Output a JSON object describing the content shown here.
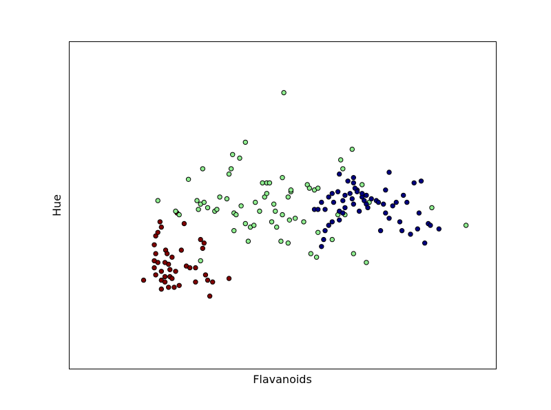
{
  "chart_data": {
    "type": "scatter",
    "title": "",
    "xlabel": "Flavanoids",
    "ylabel": "Hue",
    "xlim": [
      -0.5,
      5.5
    ],
    "ylim": [
      0.15,
      2.0
    ],
    "grid": false,
    "legend": "none",
    "xticks_visible": false,
    "yticks_visible": false,
    "series": [
      {
        "color": "#800000",
        "points": [
          [
            0.55,
            0.65
          ],
          [
            0.7,
            0.72
          ],
          [
            0.7,
            0.85
          ],
          [
            0.72,
            0.8
          ],
          [
            0.72,
            0.68
          ],
          [
            0.75,
            0.75
          ],
          [
            0.8,
            0.7
          ],
          [
            0.7,
            0.76
          ],
          [
            0.72,
            0.9
          ],
          [
            0.75,
            0.92
          ],
          [
            0.78,
            0.98
          ],
          [
            0.8,
            0.95
          ],
          [
            0.8,
            0.65
          ],
          [
            0.8,
            0.6
          ],
          [
            0.85,
            0.64
          ],
          [
            0.85,
            0.67
          ],
          [
            0.86,
            0.82
          ],
          [
            0.88,
            0.8
          ],
          [
            0.9,
            0.61
          ],
          [
            0.9,
            0.74
          ],
          [
            0.92,
            0.71
          ],
          [
            0.92,
            0.67
          ],
          [
            0.95,
            0.66
          ],
          [
            0.95,
            0.78
          ],
          [
            0.98,
            0.61
          ],
          [
            1.0,
            0.7
          ],
          [
            1.02,
            1.03
          ],
          [
            1.05,
            0.62
          ],
          [
            1.08,
            0.82
          ],
          [
            1.12,
            0.97
          ],
          [
            1.15,
            0.73
          ],
          [
            1.2,
            0.72
          ],
          [
            1.28,
            0.64
          ],
          [
            1.28,
            0.72
          ],
          [
            1.35,
            0.88
          ],
          [
            1.4,
            0.86
          ],
          [
            1.38,
            0.83
          ],
          [
            1.42,
            0.68
          ],
          [
            1.45,
            0.65
          ],
          [
            1.48,
            0.56
          ],
          [
            1.52,
            0.64
          ],
          [
            1.75,
            0.66
          ],
          [
            0.85,
            0.75
          ]
        ]
      },
      {
        "color": "#90ee90",
        "points": [
          [
            0.75,
            1.1
          ],
          [
            1.0,
            1.04
          ],
          [
            1.05,
            1.02
          ],
          [
            1.18,
            1.22
          ],
          [
            1.3,
            1.1
          ],
          [
            1.32,
            1.05
          ],
          [
            1.35,
            1.08
          ],
          [
            1.35,
            0.76
          ],
          [
            1.38,
            1.28
          ],
          [
            1.4,
            1.09
          ],
          [
            1.45,
            1.06
          ],
          [
            1.55,
            1.04
          ],
          [
            1.58,
            1.05
          ],
          [
            1.62,
            1.12
          ],
          [
            1.72,
            1.11
          ],
          [
            1.75,
            1.25
          ],
          [
            1.78,
            1.28
          ],
          [
            1.8,
            1.36
          ],
          [
            1.82,
            0.93
          ],
          [
            1.82,
            1.03
          ],
          [
            1.85,
            1.02
          ],
          [
            1.9,
            1.34
          ],
          [
            1.92,
            1.07
          ],
          [
            1.98,
            1.43
          ],
          [
            1.98,
            0.97
          ],
          [
            2.02,
            0.87
          ],
          [
            2.05,
            0.95
          ],
          [
            2.1,
            0.96
          ],
          [
            2.12,
            1.09
          ],
          [
            2.18,
            1.04
          ],
          [
            2.22,
            1.2
          ],
          [
            2.25,
            1.12
          ],
          [
            2.28,
            1.14
          ],
          [
            2.28,
            1.2
          ],
          [
            2.32,
            1.2
          ],
          [
            2.35,
            0.98
          ],
          [
            2.38,
            1.08
          ],
          [
            2.4,
            1.04
          ],
          [
            2.42,
            0.95
          ],
          [
            2.48,
            0.87
          ],
          [
            2.5,
            1.02
          ],
          [
            2.5,
            1.23
          ],
          [
            2.52,
            1.71
          ],
          [
            2.58,
            0.86
          ],
          [
            2.58,
            1.12
          ],
          [
            2.6,
            0.99
          ],
          [
            2.62,
            1.15
          ],
          [
            2.62,
            1.16
          ],
          [
            2.68,
            1.0
          ],
          [
            2.8,
            0.98
          ],
          [
            2.85,
            1.19
          ],
          [
            2.88,
            1.17
          ],
          [
            2.9,
            0.8
          ],
          [
            2.95,
            1.16
          ],
          [
            2.98,
            0.78
          ],
          [
            3.0,
            0.92
          ],
          [
            3.0,
            1.17
          ],
          [
            3.2,
            0.88
          ],
          [
            3.28,
            1.02
          ],
          [
            3.32,
            1.33
          ],
          [
            3.35,
            1.28
          ],
          [
            3.38,
            1.02
          ],
          [
            3.48,
            1.39
          ],
          [
            3.5,
            0.8
          ],
          [
            3.62,
            1.19
          ],
          [
            3.68,
            0.75
          ],
          [
            3.72,
            1.09
          ],
          [
            4.6,
            1.06
          ],
          [
            5.08,
            0.96
          ]
        ]
      },
      {
        "color": "#000080",
        "points": [
          [
            2.95,
            1.05
          ],
          [
            3.0,
            1.05
          ],
          [
            3.05,
            1.09
          ],
          [
            3.1,
            1.05
          ],
          [
            3.15,
            1.12
          ],
          [
            3.2,
            1.14
          ],
          [
            3.22,
            1.09
          ],
          [
            3.28,
            1.15
          ],
          [
            3.3,
            1.04
          ],
          [
            3.35,
            1.1
          ],
          [
            3.38,
            1.06
          ],
          [
            3.38,
            1.13
          ],
          [
            3.42,
            1.21
          ],
          [
            3.45,
            1.14
          ],
          [
            3.48,
            1.11
          ],
          [
            3.5,
            1.08
          ],
          [
            3.55,
            1.16
          ],
          [
            3.58,
            1.04
          ],
          [
            3.5,
            1.2
          ],
          [
            3.5,
            1.23
          ],
          [
            3.62,
            1.12
          ],
          [
            3.65,
            1.1
          ],
          [
            3.68,
            1.13
          ],
          [
            3.68,
            1.08
          ],
          [
            3.7,
            1.06
          ],
          [
            3.75,
            1.11
          ],
          [
            3.82,
            1.1
          ],
          [
            3.85,
            1.09
          ],
          [
            3.88,
            0.93
          ],
          [
            3.92,
            1.08
          ],
          [
            3.95,
            1.03
          ],
          [
            3.95,
            1.16
          ],
          [
            4.0,
            1.0
          ],
          [
            4.0,
            1.26
          ],
          [
            4.05,
            1.07
          ],
          [
            4.1,
            1.09
          ],
          [
            4.15,
            0.98
          ],
          [
            4.18,
            0.93
          ],
          [
            4.2,
            1.13
          ],
          [
            4.25,
            1.09
          ],
          [
            4.3,
            0.91
          ],
          [
            4.35,
            1.2
          ],
          [
            4.4,
            0.94
          ],
          [
            4.42,
            1.03
          ],
          [
            4.45,
            1.21
          ],
          [
            4.5,
            0.86
          ],
          [
            4.55,
            0.97
          ],
          [
            4.58,
            0.96
          ],
          [
            4.7,
            0.94
          ],
          [
            3.05,
            0.84
          ],
          [
            3.08,
            0.88
          ],
          [
            3.1,
            0.93
          ],
          [
            3.15,
            0.96
          ],
          [
            3.2,
            0.98
          ],
          [
            3.3,
            0.99
          ],
          [
            3.35,
            1.03
          ],
          [
            3.3,
            1.25
          ],
          [
            3.52,
            1.17
          ],
          [
            3.55,
            1.15
          ],
          [
            3.62,
            1.14
          ]
        ]
      }
    ]
  }
}
